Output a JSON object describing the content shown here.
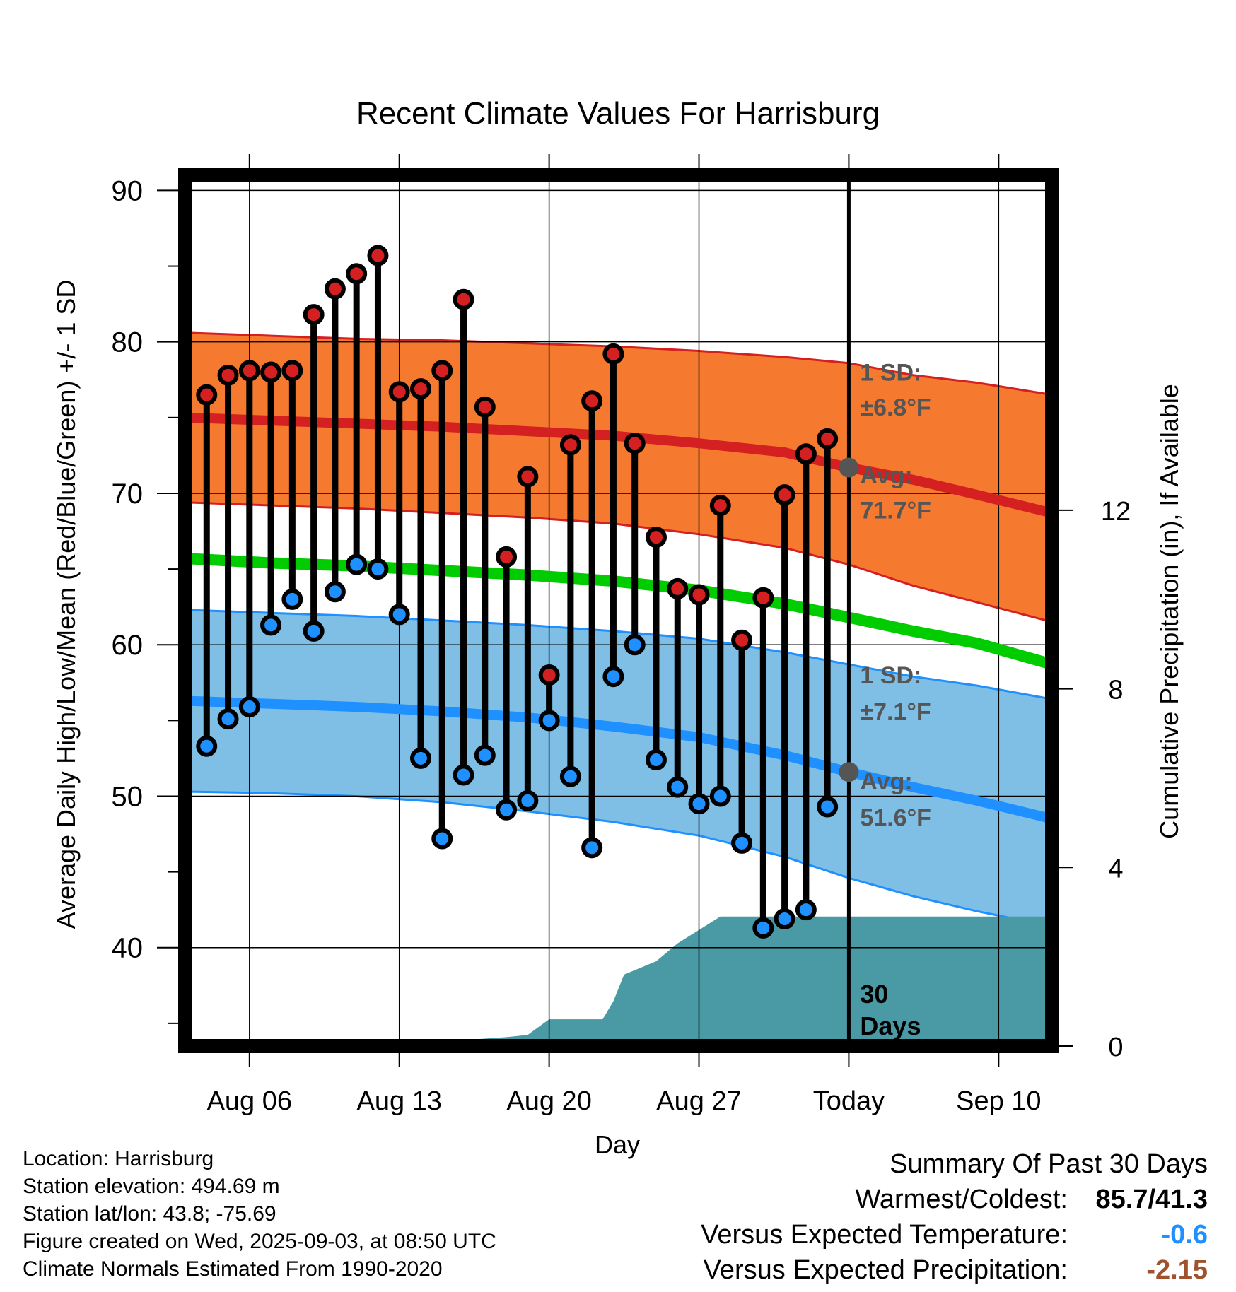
{
  "chart_data": {
    "type": "line",
    "title": "Recent Climate Values For Harrisburg",
    "xlabel": "Day",
    "ylabel": "Average Daily High/Low/Mean (Red/Blue/Green) +/- 1 SD",
    "y2label": "Cumulative Precipitation (in), If Available",
    "ylim": [
      33.5,
      91
    ],
    "y2lim": [
      0,
      19.5
    ],
    "yticks": [
      40,
      50,
      60,
      70,
      80,
      90
    ],
    "y2ticks": [
      0,
      4,
      8,
      12
    ],
    "xlim": [
      0,
      40.5
    ],
    "xticks": [
      {
        "label": "Aug 06",
        "x": 3
      },
      {
        "label": "Aug 13",
        "x": 10
      },
      {
        "label": "Aug 20",
        "x": 17
      },
      {
        "label": "Aug 27",
        "x": 24
      },
      {
        "label": "Today",
        "x": 31
      },
      {
        "label": "Sep 10",
        "x": 38
      }
    ],
    "grid": true,
    "normals": {
      "x": [
        0,
        4,
        8,
        12,
        16,
        20,
        24,
        28,
        31,
        34,
        37,
        40.5
      ],
      "high_avg": [
        75.0,
        74.8,
        74.6,
        74.4,
        74.1,
        73.8,
        73.3,
        72.7,
        71.7,
        70.9,
        69.9,
        68.7
      ],
      "high_upper": [
        80.6,
        80.4,
        80.2,
        80.1,
        79.9,
        79.7,
        79.4,
        79.0,
        78.6,
        77.8,
        77.3,
        76.5
      ],
      "high_lower": [
        69.4,
        69.2,
        69.0,
        68.7,
        68.4,
        68.0,
        67.3,
        66.4,
        65.3,
        63.9,
        62.8,
        61.5
      ],
      "mean": [
        65.7,
        65.4,
        65.2,
        64.9,
        64.6,
        64.2,
        63.6,
        62.7,
        61.8,
        60.9,
        60.1,
        58.7
      ],
      "low_avg": [
        56.3,
        56.1,
        55.9,
        55.6,
        55.2,
        54.6,
        53.9,
        52.7,
        51.6,
        50.6,
        49.7,
        48.5
      ],
      "low_upper": [
        62.3,
        62.1,
        61.9,
        61.6,
        61.3,
        60.9,
        60.4,
        59.5,
        58.7,
        57.9,
        57.3,
        56.4
      ],
      "low_lower": [
        50.3,
        50.2,
        50.0,
        49.6,
        49.0,
        48.3,
        47.4,
        46.0,
        44.6,
        43.4,
        42.4,
        41.4
      ]
    },
    "colors": {
      "high_band": "#f57a30",
      "high_line": "#d42020",
      "low_band": "#7fbfe6",
      "low_line": "#1e90ff",
      "mean_line": "#00cc00",
      "precip": "#4a9aa5",
      "marker_high": "#d42020",
      "marker_low": "#1e90ff",
      "today_marker": "#555555"
    },
    "series": [
      {
        "name": "High",
        "x": [
          1,
          2,
          3,
          4,
          5,
          6,
          7,
          8,
          9,
          10,
          11,
          12,
          13,
          14,
          15,
          16,
          17,
          18,
          19,
          20,
          21,
          22,
          23,
          24,
          25,
          26,
          27,
          28,
          29,
          30
        ],
        "values": [
          76.5,
          77.8,
          78.1,
          78.0,
          78.1,
          81.8,
          83.5,
          84.5,
          85.7,
          76.7,
          76.9,
          78.1,
          82.8,
          75.7,
          65.8,
          71.1,
          58.0,
          73.2,
          76.1,
          79.2,
          73.3,
          67.1,
          63.7,
          63.3,
          69.2,
          60.3,
          63.1,
          69.9,
          72.6,
          73.6
        ]
      },
      {
        "name": "Low",
        "x": [
          1,
          2,
          3,
          4,
          5,
          6,
          7,
          8,
          9,
          10,
          11,
          12,
          13,
          14,
          15,
          16,
          17,
          18,
          19,
          20,
          21,
          22,
          23,
          24,
          25,
          26,
          27,
          28,
          29,
          30
        ],
        "values": [
          53.3,
          55.1,
          55.9,
          61.3,
          63.0,
          60.9,
          63.5,
          65.3,
          65.0,
          62.0,
          52.5,
          47.2,
          51.4,
          52.7,
          49.1,
          49.7,
          55.0,
          51.3,
          46.6,
          57.9,
          60.0,
          52.4,
          50.6,
          49.5,
          50.0,
          46.9,
          41.3,
          41.9,
          42.5,
          49.3
        ]
      }
    ],
    "precip": {
      "x": [
        0,
        6,
        8,
        10,
        12,
        15,
        16,
        17,
        18,
        19,
        19.5,
        20,
        20.5,
        21,
        22,
        23,
        24,
        25,
        31,
        40.5
      ],
      "values": [
        0.0,
        0.0,
        0.0,
        0.1,
        0.1,
        0.2,
        0.25,
        0.6,
        0.6,
        0.6,
        0.6,
        1.0,
        1.6,
        1.7,
        1.9,
        2.3,
        2.6,
        2.9,
        2.9,
        2.9
      ]
    },
    "today_markers": [
      {
        "x": 31,
        "y": 71.7
      },
      {
        "x": 31,
        "y": 51.6
      }
    ],
    "annotations": {
      "high_sd_label": "1 SD:",
      "high_sd_value": "±6.8°F",
      "high_avg_label": "Avg:",
      "high_avg_value": "71.7°F",
      "low_sd_label": "1 SD:",
      "low_sd_value": "±7.1°F",
      "low_avg_label": "Avg:",
      "low_avg_value": "51.6°F",
      "days_line1": "30",
      "days_line2": "Days"
    }
  },
  "footer": {
    "location": "Location: Harrisburg",
    "elevation": "Station elevation: 494.69 m",
    "latlon": "Station lat/lon: 43.8; -75.69",
    "created": "Figure created on Wed, 2025-09-03, at 08:50 UTC",
    "normals": "Climate Normals Estimated From 1990-2020"
  },
  "summary": {
    "title": "Summary Of Past 30 Days",
    "warmest_label": "Warmest/Coldest:",
    "warmest_value": "85.7/41.3",
    "temp_label": "Versus Expected Temperature:",
    "temp_value": "-0.6",
    "temp_color": "#1e90ff",
    "precip_label": "Versus Expected Precipitation:",
    "precip_value": "-2.15",
    "precip_color": "#a0522d"
  }
}
